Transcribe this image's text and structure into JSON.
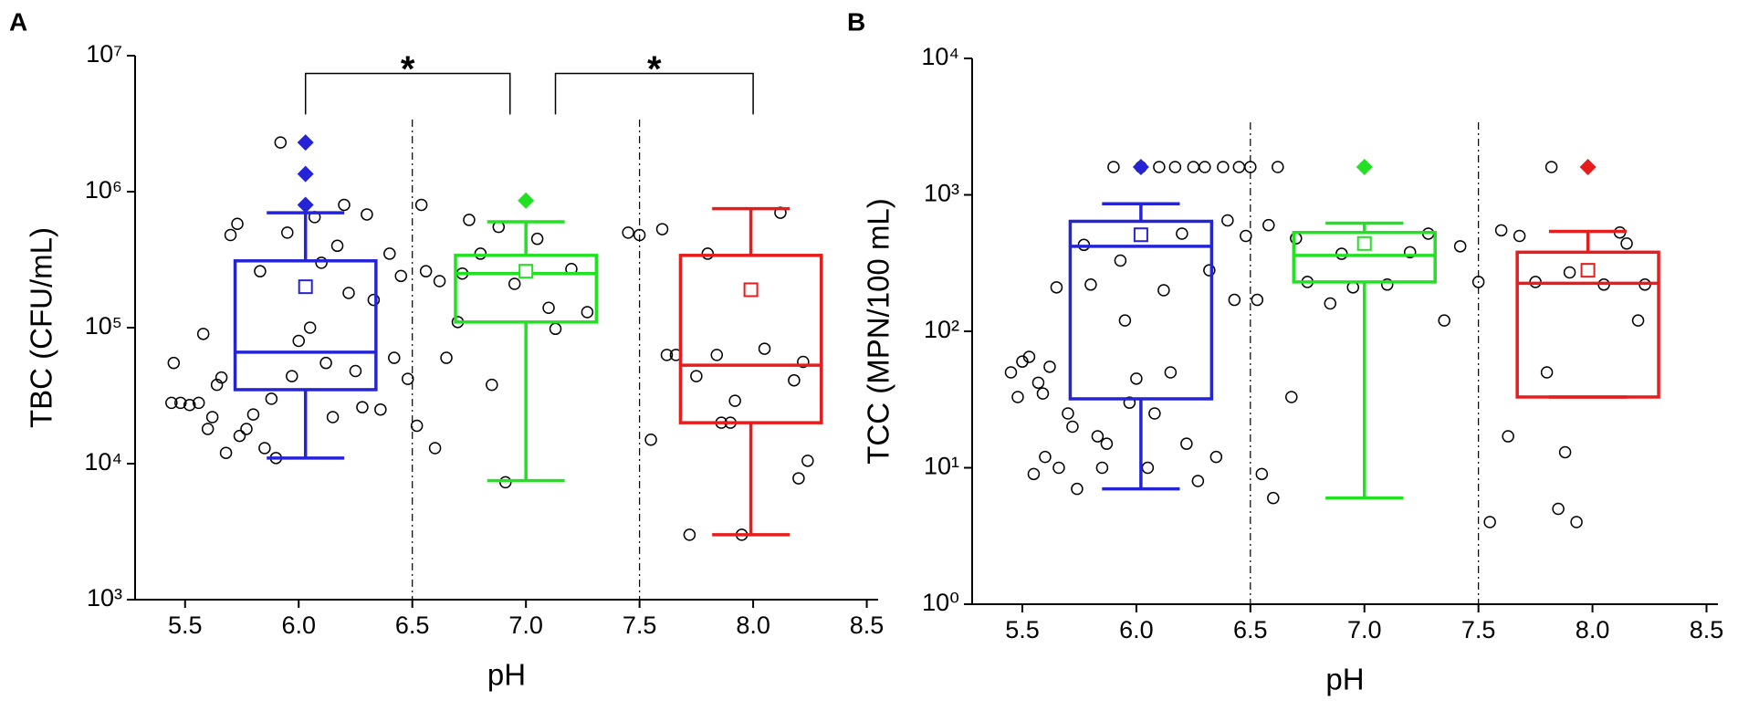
{
  "chart_data": [
    {
      "type": "box",
      "panel": "A",
      "xlabel": "pH",
      "ylabel": "TBC (CFU/mL)",
      "log_y": true,
      "xlim": [
        5.28,
        8.55
      ],
      "xticks": [
        5.5,
        {
          "value": 6,
          "label": "6.0"
        },
        6.5,
        {
          "value": 7,
          "label": "7.0"
        },
        7.5,
        {
          "value": 8,
          "label": "8.0"
        },
        8.5
      ],
      "ylim": [
        1000,
        10000000
      ],
      "yticks": [
        {
          "value": 1000,
          "label": "10³"
        },
        {
          "value": 10000,
          "label": "10⁴"
        },
        {
          "value": 100000,
          "label": "10⁵"
        },
        {
          "value": 1000000,
          "label": "10⁶"
        },
        {
          "value": 10000000,
          "label": "10⁷"
        }
      ],
      "vlines": [
        6.5,
        7.5
      ],
      "annotations": [
        {
          "text": "*",
          "x": [
            6.03,
            6.93
          ],
          "y": [
            3700000,
            7400000
          ]
        },
        {
          "text": "*",
          "x": [
            7.13,
            8.0
          ],
          "y": [
            3700000,
            7400000
          ]
        }
      ],
      "boxes": [
        {
          "x": 6.03,
          "color": "#2424d6",
          "whisker_low": 11000,
          "q1": 35000,
          "median": 66000,
          "q3": 310000,
          "whisker_high": 700000,
          "mean": 200000,
          "outliers": [
            2300000,
            1350000,
            800000
          ]
        },
        {
          "x": 7.0,
          "color": "#22e022",
          "whisker_low": 7500,
          "q1": 110000,
          "median": 250000,
          "q3": 340000,
          "whisker_high": 600000,
          "mean": 260000,
          "outliers": [
            860000
          ]
        },
        {
          "x": 7.99,
          "color": "#e81c1c",
          "whisker_low": 3000,
          "q1": 20000,
          "median": 53000,
          "q3": 340000,
          "whisker_high": 750000,
          "mean": 190000,
          "outliers": []
        }
      ],
      "points": {
        "x": [
          5.45,
          5.44,
          5.48,
          5.52,
          5.56,
          5.58,
          5.6,
          5.62,
          5.64,
          5.66,
          5.68,
          5.7,
          5.73,
          5.74,
          5.77,
          5.8,
          5.83,
          5.85,
          5.88,
          5.9,
          5.92,
          5.95,
          5.97,
          6.0,
          6.05,
          6.07,
          6.1,
          6.12,
          6.15,
          6.17,
          6.2,
          6.22,
          6.25,
          6.28,
          6.3,
          6.33,
          6.36,
          6.4,
          6.42,
          6.45,
          6.48,
          6.52,
          6.54,
          6.56,
          6.6,
          6.62,
          6.65,
          6.7,
          6.72,
          6.75,
          6.8,
          6.85,
          6.88,
          6.91,
          6.95,
          7.05,
          7.1,
          7.13,
          7.2,
          7.27,
          7.45,
          7.5,
          7.55,
          7.6,
          7.62,
          7.66,
          7.72,
          7.75,
          7.8,
          7.84,
          7.86,
          7.9,
          7.92,
          7.95,
          8.05,
          8.12,
          8.18,
          8.2,
          8.22,
          8.24
        ],
        "y": [
          55000,
          28000,
          28000,
          27000,
          28000,
          90000,
          18000,
          22000,
          38000,
          43000,
          12000,
          480000,
          580000,
          16000,
          18000,
          23000,
          260000,
          13000,
          30000,
          11000,
          2300000,
          500000,
          44000,
          80000,
          100000,
          650000,
          300000,
          55000,
          22000,
          400000,
          800000,
          180000,
          48000,
          26000,
          680000,
          160000,
          25000,
          350000,
          60000,
          240000,
          42000,
          19000,
          800000,
          260000,
          13000,
          220000,
          60000,
          110000,
          250000,
          620000,
          350000,
          38000,
          550000,
          7300,
          210000,
          450000,
          140000,
          98000,
          270000,
          130000,
          500000,
          480000,
          15000,
          530000,
          63000,
          63000,
          3000,
          44000,
          350000,
          63000,
          20000,
          20000,
          29000,
          3000,
          70000,
          700000,
          41000,
          7800,
          56000,
          10500
        ]
      }
    },
    {
      "type": "box",
      "panel": "B",
      "xlabel": "pH",
      "ylabel": "TCC (MPN/100 mL)",
      "log_y": true,
      "xlim": [
        5.28,
        8.55
      ],
      "xticks": [
        5.5,
        {
          "value": 6,
          "label": "6.0"
        },
        6.5,
        {
          "value": 7,
          "label": "7.0"
        },
        7.5,
        {
          "value": 8,
          "label": "8.0"
        },
        8.5
      ],
      "ylim": [
        1,
        10000
      ],
      "yticks": [
        {
          "value": 1,
          "label": "10⁰"
        },
        {
          "value": 10,
          "label": "10¹"
        },
        {
          "value": 100,
          "label": "10²"
        },
        {
          "value": 1000,
          "label": "10³"
        },
        {
          "value": 10000,
          "label": "10⁴"
        }
      ],
      "vlines": [
        6.5,
        7.5
      ],
      "boxes": [
        {
          "x": 6.02,
          "color": "#2424d6",
          "whisker_low": 7,
          "q1": 32,
          "median": 420,
          "q3": 640,
          "whisker_high": 860,
          "mean": 510,
          "outliers": [
            1600
          ]
        },
        {
          "x": 7.0,
          "color": "#22e022",
          "whisker_low": 6,
          "q1": 230,
          "median": 360,
          "q3": 530,
          "whisker_high": 620,
          "mean": 440,
          "outliers": [
            1600
          ]
        },
        {
          "x": 7.98,
          "color": "#e81c1c",
          "whisker_low": 33,
          "q1": 33,
          "median": 225,
          "q3": 380,
          "whisker_high": 540,
          "mean": 280,
          "outliers": [
            1600
          ]
        }
      ],
      "points": {
        "x": [
          5.45,
          5.48,
          5.5,
          5.53,
          5.55,
          5.57,
          5.59,
          5.6,
          5.62,
          5.65,
          5.66,
          5.7,
          5.72,
          5.74,
          5.77,
          5.8,
          5.83,
          5.85,
          5.87,
          5.9,
          5.93,
          5.95,
          5.97,
          6.0,
          6.02,
          6.05,
          6.08,
          6.1,
          6.12,
          6.15,
          6.17,
          6.2,
          6.22,
          6.25,
          6.27,
          6.3,
          6.32,
          6.35,
          6.38,
          6.4,
          6.43,
          6.45,
          6.48,
          6.5,
          6.53,
          6.55,
          6.58,
          6.6,
          6.62,
          6.68,
          6.7,
          6.75,
          6.85,
          6.9,
          6.95,
          7.1,
          7.2,
          7.28,
          7.35,
          7.42,
          7.5,
          7.55,
          7.6,
          7.63,
          7.68,
          7.75,
          7.8,
          7.82,
          7.85,
          7.88,
          7.9,
          7.93,
          8.05,
          8.12,
          8.15,
          8.2,
          8.23
        ],
        "y": [
          50,
          33,
          60,
          65,
          9,
          42,
          35,
          12,
          55,
          210,
          10,
          25,
          20,
          7,
          430,
          220,
          17,
          10,
          15,
          1600,
          330,
          120,
          30,
          45,
          1600,
          10,
          25,
          1600,
          200,
          50,
          1600,
          520,
          15,
          1600,
          8,
          1600,
          280,
          12,
          1600,
          650,
          170,
          1600,
          500,
          1600,
          170,
          9,
          600,
          6,
          1600,
          33,
          480,
          230,
          160,
          370,
          210,
          220,
          380,
          520,
          120,
          420,
          230,
          4,
          550,
          17,
          500,
          230,
          50,
          1600,
          5,
          13,
          270,
          4,
          220,
          530,
          440,
          120,
          220
        ]
      }
    }
  ]
}
